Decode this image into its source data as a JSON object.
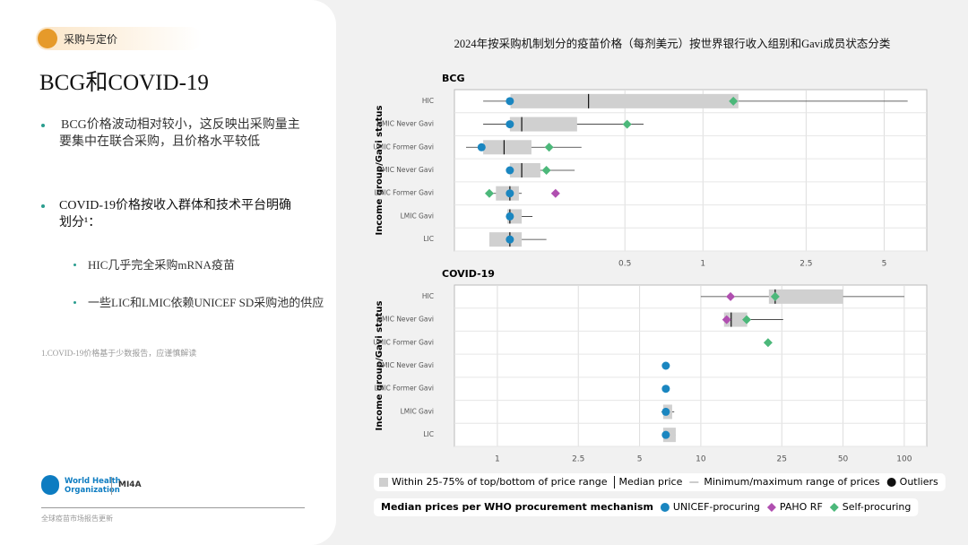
{
  "header": {
    "section": "采购与定价",
    "title": "BCG和COVID-19"
  },
  "bullets": [
    "BCG价格波动相对较小，这反映出采购量主要集中在联合采购，且价格水平较低",
    "COVID-19价格按收入群体和技术平台明确划分¹："
  ],
  "sub_bullets": [
    "HIC几乎完全采购mRNA疫苗",
    "一些LIC和LMIC依赖UNICEF SD采购池的供应"
  ],
  "footnote": "1.COVID-19价格基于少数报告，应谨慎解读",
  "footer": "全球疫苗市场报告更新",
  "logos": [
    "World Health",
    "Organization",
    "MI4A"
  ],
  "figure_title": "2024年按采购机制划分的疫苗价格（每剂美元）按世界银行收入组别和Gavi成员状态分类",
  "legend": {
    "box_items": [
      "Within 25-75% of top/bottom of price range",
      "Median price",
      "Minimum/maximum range of prices",
      "Outliers"
    ],
    "title": "Median prices per WHO procurement mechanism"
  },
  "chart_data": [
    {
      "type": "box",
      "title": "BCG",
      "ylabel": "Income group/Gavi status",
      "xscale": "log",
      "grid": true,
      "categories": [
        "HIC",
        "UMIC Never Gavi",
        "UMIC Former Gavi",
        "LMIC Never Gavi",
        "LMIC Former Gavi",
        "LMIC Gavi",
        "LIC"
      ],
      "xlim": [
        0.11,
        7.3
      ],
      "xticks": [
        0.5,
        1,
        2.5,
        5
      ],
      "box_color": "#d0d0d0",
      "whisker_low": [
        0.142,
        0.142,
        0.122,
        0.18,
        0.15,
        0.176,
        0.15
      ],
      "q1": [
        0.181,
        0.18,
        0.142,
        0.18,
        0.159,
        0.176,
        0.15
      ],
      "median": [
        0.362,
        0.2,
        0.171,
        0.2,
        0.18,
        0.18,
        0.18
      ],
      "q3": [
        1.37,
        0.327,
        0.218,
        0.236,
        0.195,
        0.2,
        0.2
      ],
      "whisker_high": [
        6.16,
        0.59,
        0.34,
        0.32,
        0.2,
        0.22,
        0.249
      ],
      "series": [
        {
          "name": "UNICEF-procuring",
          "color": "#1a86c0",
          "marker": "circle",
          "values": [
            0.18,
            0.18,
            0.14,
            0.18,
            0.18,
            0.18,
            0.18
          ]
        },
        {
          "name": "PAHO RF",
          "color": "#b04fb0",
          "marker": "diamond",
          "values": [
            null,
            null,
            null,
            null,
            0.27,
            null,
            null
          ]
        },
        {
          "name": "Self-procuring",
          "color": "#4cb87a",
          "marker": "diamond",
          "values": [
            1.31,
            0.51,
            0.255,
            0.249,
            0.15,
            null,
            null
          ]
        }
      ]
    },
    {
      "type": "box",
      "title": "COVID-19",
      "ylabel": "Income group/Gavi status",
      "xscale": "log",
      "grid": true,
      "categories": [
        "HIC",
        "UMIC Never Gavi",
        "UMIC Former Gavi",
        "LMIC Never Gavi",
        "LMIC Former Gavi",
        "LMIC Gavi",
        "LIC"
      ],
      "xlim": [
        0.615,
        129
      ],
      "xticks": [
        1,
        2.5,
        5,
        10,
        25,
        50,
        100
      ],
      "box_color": "#d0d0d0",
      "whisker_low": [
        10,
        13.0,
        21.0,
        null,
        null,
        6.4,
        6.53
      ],
      "q1": [
        21.6,
        13.0,
        null,
        null,
        null,
        6.53,
        6.53
      ],
      "median": [
        23.2,
        14.1,
        null,
        null,
        null,
        null,
        null
      ],
      "q3": [
        50,
        16.9,
        null,
        null,
        null,
        7.23,
        7.53
      ],
      "whisker_high": [
        100,
        25.4,
        21.8,
        null,
        null,
        7.4,
        7.53
      ],
      "series": [
        {
          "color": "#1a86c0",
          "marker": "circle",
          "values": [
            null,
            null,
            null,
            6.73,
            6.73,
            6.73,
            6.73
          ]
        },
        {
          "color": "#b04fb0",
          "marker": "diamond",
          "values": [
            14.0,
            13.4,
            null,
            null,
            null,
            null,
            null
          ]
        },
        {
          "color": "#4cb87a",
          "marker": "diamond",
          "values": [
            23.2,
            16.8,
            21.4,
            null,
            null,
            null,
            null
          ]
        }
      ]
    }
  ]
}
